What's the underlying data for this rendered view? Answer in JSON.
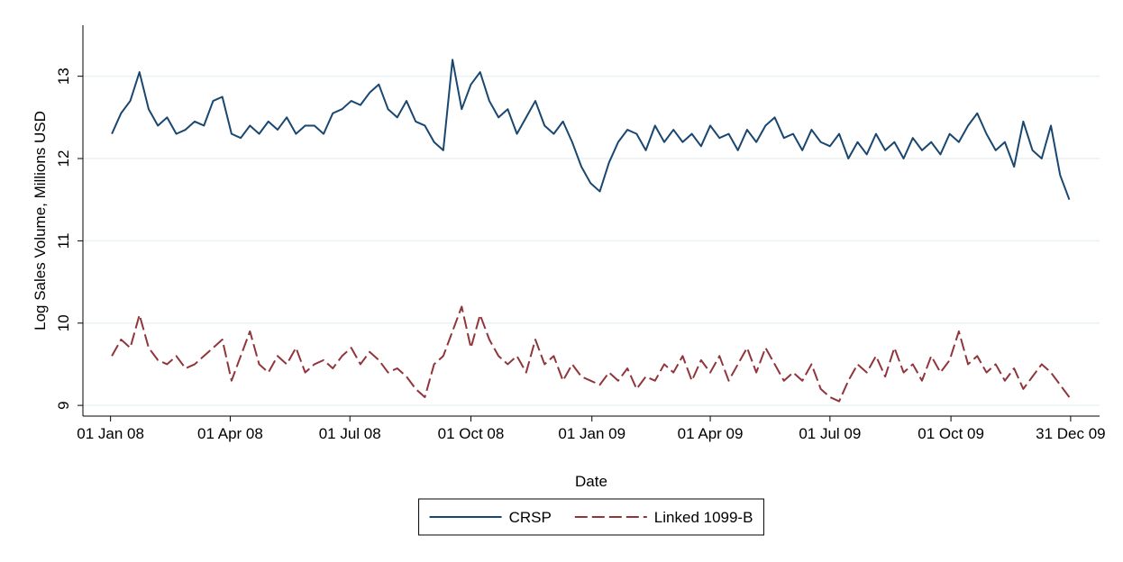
{
  "chart_data": {
    "type": "line",
    "x_label": "Date",
    "y_label": "Log Sales Volume, Millions USD",
    "x": [
      "2008-01-02",
      "2008-01-09",
      "2008-01-16",
      "2008-01-23",
      "2008-01-30",
      "2008-02-06",
      "2008-02-13",
      "2008-02-20",
      "2008-02-27",
      "2008-03-05",
      "2008-03-12",
      "2008-03-19",
      "2008-03-26",
      "2008-04-02",
      "2008-04-09",
      "2008-04-16",
      "2008-04-23",
      "2008-04-30",
      "2008-05-07",
      "2008-05-14",
      "2008-05-21",
      "2008-05-28",
      "2008-06-04",
      "2008-06-11",
      "2008-06-18",
      "2008-06-25",
      "2008-07-02",
      "2008-07-09",
      "2008-07-16",
      "2008-07-23",
      "2008-07-30",
      "2008-08-06",
      "2008-08-13",
      "2008-08-20",
      "2008-08-27",
      "2008-09-03",
      "2008-09-10",
      "2008-09-17",
      "2008-09-24",
      "2008-10-01",
      "2008-10-08",
      "2008-10-15",
      "2008-10-22",
      "2008-10-29",
      "2008-11-05",
      "2008-11-12",
      "2008-11-19",
      "2008-11-26",
      "2008-12-03",
      "2008-12-10",
      "2008-12-17",
      "2008-12-24",
      "2008-12-31",
      "2009-01-07",
      "2009-01-14",
      "2009-01-21",
      "2009-01-28",
      "2009-02-04",
      "2009-02-11",
      "2009-02-18",
      "2009-02-25",
      "2009-03-04",
      "2009-03-11",
      "2009-03-18",
      "2009-03-25",
      "2009-04-01",
      "2009-04-08",
      "2009-04-15",
      "2009-04-22",
      "2009-04-29",
      "2009-05-06",
      "2009-05-13",
      "2009-05-20",
      "2009-05-27",
      "2009-06-03",
      "2009-06-10",
      "2009-06-17",
      "2009-06-24",
      "2009-07-01",
      "2009-07-08",
      "2009-07-15",
      "2009-07-22",
      "2009-07-29",
      "2009-08-05",
      "2009-08-12",
      "2009-08-19",
      "2009-08-26",
      "2009-09-02",
      "2009-09-09",
      "2009-09-16",
      "2009-09-23",
      "2009-09-30",
      "2009-10-07",
      "2009-10-14",
      "2009-10-21",
      "2009-10-28",
      "2009-11-04",
      "2009-11-11",
      "2009-11-18",
      "2009-11-25",
      "2009-12-02",
      "2009-12-09",
      "2009-12-16",
      "2009-12-23",
      "2009-12-30"
    ],
    "series": [
      {
        "name": "CRSP",
        "color": "#1a476f",
        "dashed": false,
        "values": [
          12.3,
          12.55,
          12.7,
          13.05,
          12.6,
          12.4,
          12.5,
          12.3,
          12.35,
          12.45,
          12.4,
          12.7,
          12.75,
          12.3,
          12.25,
          12.4,
          12.3,
          12.45,
          12.35,
          12.5,
          12.3,
          12.4,
          12.4,
          12.3,
          12.55,
          12.6,
          12.7,
          12.65,
          12.8,
          12.9,
          12.6,
          12.5,
          12.7,
          12.45,
          12.4,
          12.2,
          12.1,
          13.2,
          12.6,
          12.9,
          13.05,
          12.7,
          12.5,
          12.6,
          12.3,
          12.5,
          12.7,
          12.4,
          12.3,
          12.45,
          12.2,
          11.9,
          11.7,
          11.6,
          11.95,
          12.2,
          12.35,
          12.3,
          12.1,
          12.4,
          12.2,
          12.35,
          12.2,
          12.3,
          12.15,
          12.4,
          12.25,
          12.3,
          12.1,
          12.35,
          12.2,
          12.4,
          12.5,
          12.25,
          12.3,
          12.1,
          12.35,
          12.2,
          12.15,
          12.3,
          12.0,
          12.2,
          12.05,
          12.3,
          12.1,
          12.2,
          12.0,
          12.25,
          12.1,
          12.2,
          12.05,
          12.3,
          12.2,
          12.4,
          12.55,
          12.3,
          12.1,
          12.2,
          11.9,
          12.45,
          12.1,
          12.0,
          12.4,
          11.8,
          11.5
        ]
      },
      {
        "name": "Linked 1099-B",
        "color": "#90353b",
        "dashed": true,
        "values": [
          9.6,
          9.8,
          9.7,
          10.1,
          9.7,
          9.55,
          9.5,
          9.6,
          9.45,
          9.5,
          9.6,
          9.7,
          9.8,
          9.3,
          9.6,
          9.9,
          9.5,
          9.4,
          9.6,
          9.5,
          9.7,
          9.4,
          9.5,
          9.55,
          9.45,
          9.6,
          9.7,
          9.5,
          9.65,
          9.55,
          9.4,
          9.45,
          9.35,
          9.2,
          9.1,
          9.5,
          9.6,
          9.9,
          10.2,
          9.7,
          10.1,
          9.8,
          9.6,
          9.5,
          9.6,
          9.4,
          9.8,
          9.5,
          9.6,
          9.3,
          9.5,
          9.35,
          9.3,
          9.25,
          9.4,
          9.3,
          9.45,
          9.2,
          9.35,
          9.3,
          9.5,
          9.4,
          9.6,
          9.3,
          9.55,
          9.4,
          9.6,
          9.3,
          9.5,
          9.7,
          9.4,
          9.7,
          9.5,
          9.3,
          9.4,
          9.3,
          9.5,
          9.2,
          9.1,
          9.05,
          9.3,
          9.5,
          9.4,
          9.6,
          9.35,
          9.7,
          9.4,
          9.5,
          9.3,
          9.6,
          9.4,
          9.55,
          9.9,
          9.5,
          9.6,
          9.4,
          9.5,
          9.3,
          9.45,
          9.2,
          9.35,
          9.5,
          9.4,
          9.25,
          9.1
        ]
      }
    ],
    "xlim": [
      "2007-12-11",
      "2010-01-22"
    ],
    "xticks": [
      {
        "value": "2008-01-01",
        "label": "01 Jan 08"
      },
      {
        "value": "2008-04-01",
        "label": "01 Apr 08"
      },
      {
        "value": "2008-07-01",
        "label": "01 Jul 08"
      },
      {
        "value": "2008-10-01",
        "label": "01 Oct 08"
      },
      {
        "value": "2009-01-01",
        "label": "01 Jan 09"
      },
      {
        "value": "2009-04-01",
        "label": "01 Apr 09"
      },
      {
        "value": "2009-07-01",
        "label": "01 Jul 09"
      },
      {
        "value": "2009-10-01",
        "label": "01 Oct 09"
      },
      {
        "value": "2009-12-31",
        "label": "31 Dec 09"
      }
    ],
    "ylim": [
      8.87,
      13.62
    ],
    "yticks": [
      9,
      10,
      11,
      12,
      13
    ],
    "grid": true,
    "legend": "bottom"
  }
}
